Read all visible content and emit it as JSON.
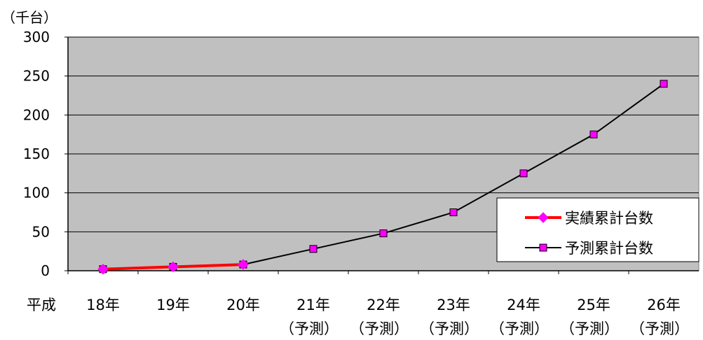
{
  "chart_data": {
    "type": "line",
    "unit_label": "（千台）",
    "x_prefix": "平成",
    "categories": [
      "18年",
      "19年",
      "20年",
      "21年",
      "22年",
      "23年",
      "24年",
      "25年",
      "26年"
    ],
    "category_sublabels": [
      "",
      "",
      "",
      "（予測）",
      "（予測）",
      "（予測）",
      "（予測）",
      "（予測）",
      "（予測）"
    ],
    "ylim": [
      0,
      300
    ],
    "yticks": [
      0,
      50,
      100,
      150,
      200,
      250,
      300
    ],
    "grid": true,
    "legend_position": "bottom-right",
    "series": [
      {
        "name": "実績累計台数",
        "color": "#ff0000",
        "marker": "diamond",
        "marker_color": "#ff00ff",
        "values": [
          2,
          5,
          8,
          null,
          null,
          null,
          null,
          null,
          null
        ]
      },
      {
        "name": "予測累計台数",
        "color": "#000000",
        "marker": "square",
        "marker_color": "#ff00ff",
        "values": [
          2,
          5,
          8,
          28,
          48,
          75,
          125,
          175,
          240
        ]
      }
    ],
    "colors": {
      "plot_background": "#c0c0c0",
      "gridline": "#000000"
    }
  }
}
